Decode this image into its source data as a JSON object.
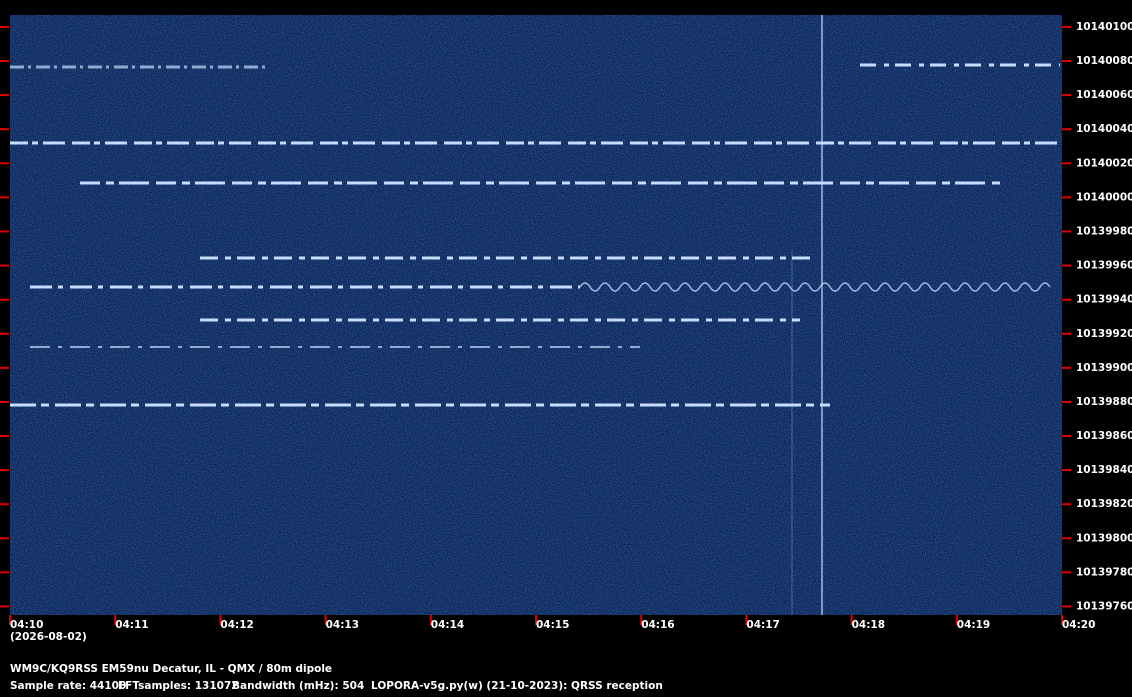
{
  "chart_data": {
    "type": "spectrogram",
    "categories": [
      "04:10",
      "04:11",
      "04:12",
      "04:13",
      "04:14",
      "04:15",
      "04:16",
      "04:17",
      "04:18",
      "04:19",
      "04:20"
    ],
    "date": "(2026-08-02)",
    "ylim": [
      10139755,
      10140107
    ],
    "yticks": [
      10139760,
      10139780,
      10139800,
      10139820,
      10139840,
      10139860,
      10139880,
      10139900,
      10139920,
      10139940,
      10139960,
      10139980,
      10140000,
      10140020,
      10140040,
      10140060,
      10140080,
      10140100
    ],
    "station": "WM9C/KQ9RSS EM59nu Decatur, IL - QMX / 80m dipole",
    "sample_rate": "Sample rate: 44100",
    "fft_samples": "FFTsamples: 131072",
    "bandwidth": "Bandwidth (mHz): 504",
    "software": "LOPORA-v5g.py(w) (21-10-2023): QRSS reception"
  }
}
